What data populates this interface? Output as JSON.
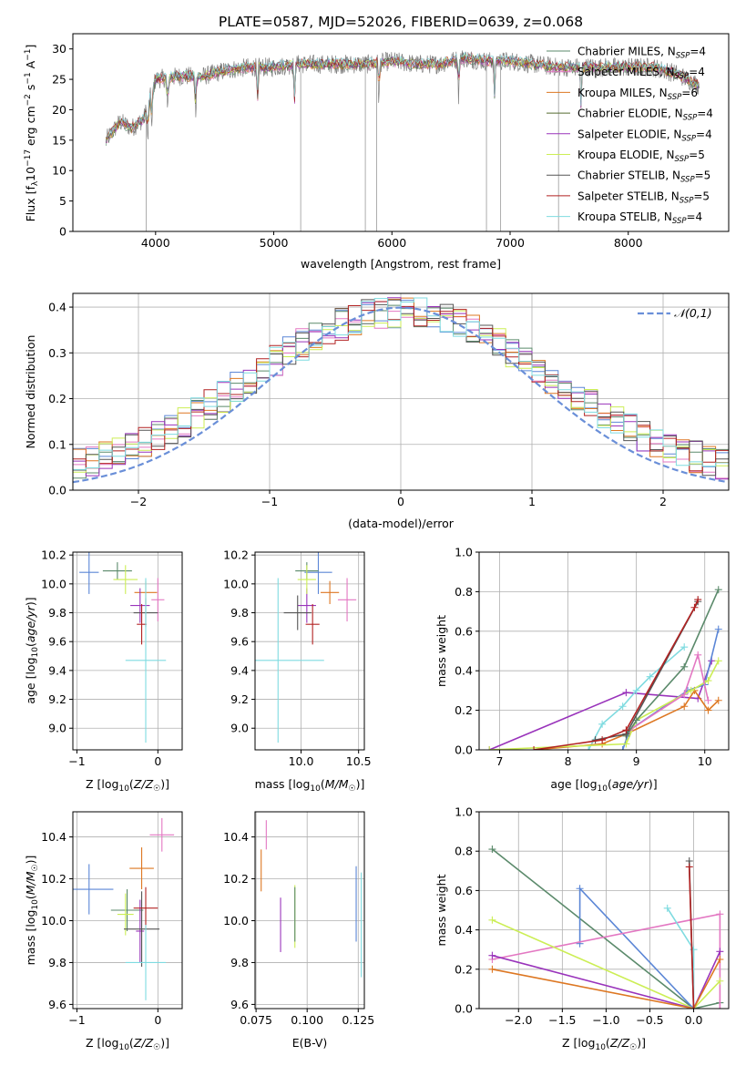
{
  "title": "PLATE=0587, MJD=52026, FIBERID=0639, z=0.068",
  "colors": {
    "chabrier_miles": "#5b8a6b",
    "salpeter_miles": "#e377c2",
    "kroupa_miles": "#dd7722",
    "chabrier_elodie": "#556b2f",
    "salpeter_elodie": "#9933bb",
    "kroupa_elodie": "#ccee55",
    "chabrier_stelib": "#555555",
    "salpeter_stelib": "#b22222",
    "kroupa_stelib": "#7fdbe0",
    "gauss": "#6a8fd8",
    "miles_blue": "#5b86d6"
  },
  "chart_data": [
    {
      "type": "line",
      "id": "spectrum",
      "xlabel": "wavelength [Angstrom, rest frame]",
      "ylabel": "Flux [f_λ 10^-17 erg cm^-2 s^-1 A^-1]",
      "xlim": [
        3300,
        8850
      ],
      "ylim": [
        0,
        32.5
      ],
      "xticks": [
        4000,
        5000,
        6000,
        7000,
        8000
      ],
      "yticks": [
        0,
        5,
        10,
        15,
        20,
        25,
        30
      ],
      "grid": false,
      "legend_position": "right",
      "legend": [
        {
          "name": "Chabrier MILES",
          "nssp": 4,
          "color_key": "chabrier_miles"
        },
        {
          "name": "Salpeter MILES",
          "nssp": 4,
          "color_key": "salpeter_miles"
        },
        {
          "name": "Kroupa MILES",
          "nssp": 6,
          "color_key": "kroupa_miles"
        },
        {
          "name": "Chabrier ELODIE",
          "nssp": 4,
          "color_key": "chabrier_elodie"
        },
        {
          "name": "Salpeter ELODIE",
          "nssp": 4,
          "color_key": "salpeter_elodie"
        },
        {
          "name": "Kroupa ELODIE",
          "nssp": 5,
          "color_key": "kroupa_elodie"
        },
        {
          "name": "Chabrier STELIB",
          "nssp": 5,
          "color_key": "chabrier_stelib"
        },
        {
          "name": "Salpeter STELIB",
          "nssp": 5,
          "color_key": "salpeter_stelib"
        },
        {
          "name": "Kroupa STELIB",
          "nssp": 4,
          "color_key": "kroupa_stelib"
        }
      ],
      "data_continuum": [
        [
          3580,
          15
        ],
        [
          3700,
          18
        ],
        [
          3800,
          17
        ],
        [
          3900,
          18.5
        ],
        [
          4000,
          25
        ],
        [
          4200,
          25.5
        ],
        [
          4400,
          25.5
        ],
        [
          4600,
          26.5
        ],
        [
          4800,
          27
        ],
        [
          5000,
          27
        ],
        [
          5200,
          27.5
        ],
        [
          5400,
          27.5
        ],
        [
          5600,
          27.5
        ],
        [
          5800,
          27.5
        ],
        [
          6000,
          28
        ],
        [
          6200,
          27.5
        ],
        [
          6400,
          27.5
        ],
        [
          6600,
          28.5
        ],
        [
          6800,
          28
        ],
        [
          7000,
          28
        ],
        [
          7200,
          27.5
        ],
        [
          7400,
          27
        ],
        [
          7600,
          27
        ],
        [
          7800,
          27
        ],
        [
          8000,
          27
        ],
        [
          8200,
          27
        ],
        [
          8400,
          26
        ],
        [
          8600,
          24
        ]
      ],
      "absorption_lines": [
        3934,
        3969,
        4102,
        4340,
        4861,
        5175,
        5890,
        6563,
        6870,
        7600
      ],
      "gaps": [
        3920,
        5228,
        5775,
        5870,
        6800,
        6920,
        7410
      ]
    },
    {
      "type": "bar",
      "id": "residuals",
      "xlabel": "(data-model)/error",
      "ylabel": "Normed distribution",
      "xlim": [
        -2.5,
        2.5
      ],
      "ylim": [
        0,
        0.43
      ],
      "xticks": [
        -2,
        -1,
        0,
        1,
        2
      ],
      "yticks": [
        0.0,
        0.1,
        0.2,
        0.3,
        0.4
      ],
      "grid": true,
      "legend_label": "𝒩(0,1)",
      "legend_position": "top-right",
      "bin_width": 0.1
    },
    {
      "type": "scatter",
      "id": "age_vs_Z",
      "xlabel": "Z [log10(Z/Z☉)]",
      "ylabel": "age  [log10(age/yr)]",
      "xlim": [
        -1.05,
        0.3
      ],
      "ylim": [
        8.85,
        10.22
      ],
      "xticks": [
        -1,
        0
      ],
      "yticks": [
        9.0,
        9.2,
        9.4,
        9.6,
        9.8,
        10.0,
        10.2
      ],
      "points": [
        {
          "c": "miles_blue",
          "x": -0.85,
          "y": 10.08,
          "xe": 0.12,
          "ye": 0.15
        },
        {
          "c": "salpeter_miles",
          "x": 0.0,
          "y": 9.89,
          "xe": 0.08,
          "ye": 0.15
        },
        {
          "c": "kroupa_miles",
          "x": -0.15,
          "y": 9.94,
          "xe": 0.14,
          "ye": 0.08
        },
        {
          "c": "chabrier_miles",
          "x": -0.5,
          "y": 10.09,
          "xe": 0.18,
          "ye": 0.06
        },
        {
          "c": "salpeter_elodie",
          "x": -0.22,
          "y": 9.85,
          "xe": 0.12,
          "ye": 0.12
        },
        {
          "c": "kroupa_elodie",
          "x": -0.4,
          "y": 10.03,
          "xe": 0.15,
          "ye": 0.1
        },
        {
          "c": "chabrier_stelib",
          "x": -0.15,
          "y": 9.8,
          "xe": 0.15,
          "ye": 0.1
        },
        {
          "c": "salpeter_stelib",
          "x": -0.2,
          "y": 9.72,
          "xe": 0.06,
          "ye": 0.14
        },
        {
          "c": "kroupa_stelib",
          "x": -0.15,
          "y": 9.47,
          "xe": 0.25,
          "ye": 0.57
        }
      ]
    },
    {
      "type": "scatter",
      "id": "age_vs_mass",
      "xlabel": "mass [log10(M/M☉)]",
      "ylabel": "",
      "xlim": [
        9.6,
        10.55
      ],
      "ylim": [
        8.85,
        10.22
      ],
      "xticks": [
        10.0,
        10.5
      ],
      "yticks": [
        9.0,
        9.2,
        9.4,
        9.6,
        9.8,
        10.0,
        10.2
      ],
      "points": [
        {
          "c": "miles_blue",
          "x": 10.15,
          "y": 10.08,
          "xe": 0.12,
          "ye": 0.15
        },
        {
          "c": "salpeter_miles",
          "x": 10.4,
          "y": 9.89,
          "xe": 0.08,
          "ye": 0.15
        },
        {
          "c": "kroupa_miles",
          "x": 10.25,
          "y": 9.94,
          "xe": 0.08,
          "ye": 0.08
        },
        {
          "c": "chabrier_miles",
          "x": 10.05,
          "y": 10.09,
          "xe": 0.1,
          "ye": 0.06
        },
        {
          "c": "salpeter_elodie",
          "x": 10.05,
          "y": 9.85,
          "xe": 0.08,
          "ye": 0.12
        },
        {
          "c": "kroupa_elodie",
          "x": 10.05,
          "y": 10.03,
          "xe": 0.08,
          "ye": 0.1
        },
        {
          "c": "chabrier_stelib",
          "x": 9.97,
          "y": 9.8,
          "xe": 0.12,
          "ye": 0.12
        },
        {
          "c": "salpeter_stelib",
          "x": 10.1,
          "y": 9.72,
          "xe": 0.06,
          "ye": 0.14
        },
        {
          "c": "kroupa_stelib",
          "x": 9.8,
          "y": 9.47,
          "xe": 0.4,
          "ye": 0.57
        }
      ]
    },
    {
      "type": "line",
      "id": "massweight_vs_age",
      "xlabel": "age  [log10(age/yr)]",
      "ylabel": "mass weight",
      "xlim": [
        6.7,
        10.35
      ],
      "ylim": [
        0,
        1.0
      ],
      "xticks": [
        7,
        8,
        9,
        10
      ],
      "yticks": [
        0.0,
        0.2,
        0.4,
        0.6,
        0.8,
        1.0
      ],
      "grid": true,
      "series": [
        {
          "c": "salpeter_elodie",
          "points": [
            [
              6.85,
              0.0
            ],
            [
              8.85,
              0.29
            ],
            [
              9.9,
              0.26
            ],
            [
              10.1,
              0.45
            ]
          ]
        },
        {
          "c": "kroupa_stelib",
          "points": [
            [
              8.3,
              0.0
            ],
            [
              8.5,
              0.13
            ],
            [
              8.8,
              0.22
            ],
            [
              9.0,
              0.3
            ],
            [
              9.2,
              0.37
            ],
            [
              9.7,
              0.52
            ]
          ]
        },
        {
          "c": "kroupa_miles",
          "points": [
            [
              7.5,
              0.0
            ],
            [
              8.5,
              0.03
            ],
            [
              8.85,
              0.08
            ],
            [
              9.7,
              0.22
            ],
            [
              9.85,
              0.3
            ],
            [
              10.05,
              0.2
            ],
            [
              10.2,
              0.25
            ]
          ]
        },
        {
          "c": "miles_blue",
          "points": [
            [
              8.8,
              0.0
            ],
            [
              8.9,
              0.1
            ],
            [
              9.75,
              0.3
            ],
            [
              10.0,
              0.33
            ],
            [
              10.2,
              0.61
            ]
          ]
        },
        {
          "c": "kroupa_elodie",
          "points": [
            [
              6.85,
              0.0
            ],
            [
              8.85,
              0.03
            ],
            [
              9.0,
              0.15
            ],
            [
              9.8,
              0.3
            ],
            [
              10.05,
              0.35
            ],
            [
              10.2,
              0.45
            ]
          ]
        },
        {
          "c": "salpeter_miles",
          "points": [
            [
              8.9,
              0.1
            ],
            [
              9.7,
              0.28
            ],
            [
              9.9,
              0.48
            ],
            [
              10.05,
              0.25
            ]
          ]
        },
        {
          "c": "chabrier_miles",
          "points": [
            [
              8.85,
              0.07
            ],
            [
              9.0,
              0.15
            ],
            [
              9.7,
              0.42
            ],
            [
              10.2,
              0.81
            ]
          ]
        },
        {
          "c": "chabrier_stelib",
          "points": [
            [
              8.4,
              0.05
            ],
            [
              8.85,
              0.08
            ],
            [
              9.9,
              0.75
            ]
          ]
        },
        {
          "c": "salpeter_stelib",
          "points": [
            [
              7.5,
              0.0
            ],
            [
              8.5,
              0.05
            ],
            [
              8.85,
              0.1
            ],
            [
              9.85,
              0.72
            ],
            [
              9.9,
              0.76
            ]
          ]
        }
      ]
    },
    {
      "type": "scatter",
      "id": "mass_vs_Z",
      "xlabel": "Z [log10(Z/Z☉)]",
      "ylabel": "mass [log10(M/M☉)]",
      "xlim": [
        -1.05,
        0.3
      ],
      "ylim": [
        9.58,
        10.52
      ],
      "xticks": [
        -1,
        0
      ],
      "yticks": [
        9.6,
        9.8,
        10.0,
        10.2,
        10.4
      ],
      "points": [
        {
          "c": "miles_blue",
          "x": -0.85,
          "y": 10.15,
          "xe": 0.3,
          "ye": 0.12
        },
        {
          "c": "salpeter_miles",
          "x": 0.05,
          "y": 10.41,
          "xe": 0.15,
          "ye": 0.08
        },
        {
          "c": "kroupa_miles",
          "x": -0.2,
          "y": 10.25,
          "xe": 0.15,
          "ye": 0.1
        },
        {
          "c": "chabrier_miles",
          "x": -0.38,
          "y": 10.05,
          "xe": 0.2,
          "ye": 0.1
        },
        {
          "c": "salpeter_elodie",
          "x": -0.22,
          "y": 9.95,
          "xe": 0.05,
          "ye": 0.15
        },
        {
          "c": "kroupa_elodie",
          "x": -0.4,
          "y": 10.03,
          "xe": 0.1,
          "ye": 0.1
        },
        {
          "c": "chabrier_stelib",
          "x": -0.2,
          "y": 9.96,
          "xe": 0.22,
          "ye": 0.18
        },
        {
          "c": "salpeter_stelib",
          "x": -0.15,
          "y": 10.06,
          "xe": 0.15,
          "ye": 0.1
        },
        {
          "c": "kroupa_stelib",
          "x": -0.15,
          "y": 9.8,
          "xe": 0.25,
          "ye": 0.18
        }
      ]
    },
    {
      "type": "scatter",
      "id": "mass_vs_ebv",
      "xlabel": "E(B-V)",
      "ylabel": "",
      "xlim": [
        0.0745,
        0.128
      ],
      "ylim": [
        9.58,
        10.52
      ],
      "xticks": [
        0.075,
        0.1,
        0.125
      ],
      "yticks": [
        9.6,
        9.8,
        10.0,
        10.2,
        10.4
      ],
      "points": [
        {
          "c": "miles_blue",
          "x": 0.124,
          "y": 10.08,
          "ye": 0.18
        },
        {
          "c": "salpeter_miles",
          "x": 0.08,
          "y": 10.41,
          "ye": 0.07
        },
        {
          "c": "kroupa_miles",
          "x": 0.0775,
          "y": 10.24,
          "ye": 0.1
        },
        {
          "c": "salpeter_elodie",
          "x": 0.087,
          "y": 9.98,
          "ye": 0.13
        },
        {
          "c": "kroupa_elodie",
          "x": 0.094,
          "y": 10.02,
          "ye": 0.15
        },
        {
          "c": "chabrier_miles",
          "x": 0.094,
          "y": 10.03,
          "ye": 0.13
        },
        {
          "c": "kroupa_stelib",
          "x": 0.1265,
          "y": 9.98,
          "ye": 0.25
        }
      ]
    },
    {
      "type": "line",
      "id": "massweight_vs_Z",
      "xlabel": "Z [log10(Z/Z☉)]",
      "ylabel": "mass weight",
      "xlim": [
        -2.45,
        0.4
      ],
      "ylim": [
        0,
        1.0
      ],
      "xticks": [
        -2.0,
        -1.5,
        -1.0,
        -0.5,
        0.0
      ],
      "yticks": [
        0.0,
        0.2,
        0.4,
        0.6,
        0.8,
        1.0
      ],
      "grid": true,
      "series": [
        {
          "c": "chabrier_miles",
          "points": [
            [
              -2.3,
              0.81
            ],
            [
              0.0,
              0.0
            ],
            [
              0.3,
              0.03
            ]
          ]
        },
        {
          "c": "miles_blue",
          "points": [
            [
              -1.3,
              0.33
            ],
            [
              -1.3,
              0.61
            ],
            [
              0.0,
              0.0
            ]
          ]
        },
        {
          "c": "salpeter_miles",
          "points": [
            [
              -2.3,
              0.25
            ],
            [
              0.3,
              0.48
            ],
            [
              0.3,
              0.0
            ]
          ]
        },
        {
          "c": "kroupa_elodie",
          "points": [
            [
              -2.3,
              0.45
            ],
            [
              0.0,
              0.0
            ],
            [
              0.3,
              0.14
            ]
          ]
        },
        {
          "c": "salpeter_elodie",
          "points": [
            [
              -2.3,
              0.27
            ],
            [
              0.0,
              0.0
            ],
            [
              0.3,
              0.29
            ]
          ]
        },
        {
          "c": "kroupa_miles",
          "points": [
            [
              -2.3,
              0.2
            ],
            [
              0.0,
              0.0
            ],
            [
              0.3,
              0.25
            ]
          ]
        },
        {
          "c": "kroupa_stelib",
          "points": [
            [
              -0.3,
              0.51
            ],
            [
              0.0,
              0.3
            ],
            [
              0.0,
              0.0
            ]
          ]
        },
        {
          "c": "chabrier_stelib",
          "points": [
            [
              -0.05,
              0.75
            ],
            [
              0.0,
              0.0
            ]
          ]
        },
        {
          "c": "salpeter_stelib",
          "points": [
            [
              -0.05,
              0.72
            ],
            [
              0.0,
              0.0
            ]
          ]
        }
      ]
    }
  ]
}
